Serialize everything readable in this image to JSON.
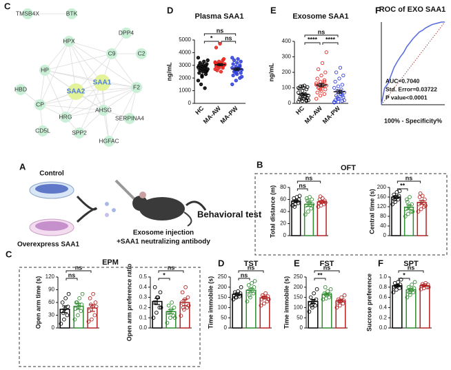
{
  "network": {
    "panel_label": "C",
    "nodes": [
      {
        "label": "TMSB4X"
      },
      {
        "label": "BTK"
      },
      {
        "label": "DPP4"
      },
      {
        "label": "HPX"
      },
      {
        "label": "C9"
      },
      {
        "label": "C2"
      },
      {
        "label": "HP"
      },
      {
        "label": "SAA1",
        "highlight": true
      },
      {
        "label": "SAA2",
        "highlight": true
      },
      {
        "label": "F2"
      },
      {
        "label": "HBD"
      },
      {
        "label": "CP"
      },
      {
        "label": "HRG"
      },
      {
        "label": "AHSG"
      },
      {
        "label": "SERPINA4"
      },
      {
        "label": "CD5L"
      },
      {
        "label": "SPP2"
      },
      {
        "label": "HGFAC"
      }
    ]
  },
  "schematic": {
    "panel_label": "A",
    "control": "Control",
    "overexpress": "Overexpress SAA1",
    "injection": "Exosome injection",
    "antibody": "+SAA1 neutralizing antibody",
    "outcome": "Behavioral test"
  },
  "boxes": [
    {
      "panel_label": "B",
      "title": "OFT"
    },
    {
      "panel_label": "C",
      "title": "EPM"
    }
  ],
  "chart_data": [
    {
      "type": "dot",
      "panel_label": "D",
      "title": "Plasma SAA1",
      "ylabel": "ng/mL",
      "categories": [
        "HC",
        "MA-AW",
        "MA-PW"
      ],
      "colors": [
        "#000000",
        "#e8251f",
        "#2f3fd8"
      ],
      "marker": "filled",
      "bar": false,
      "means": [
        2650,
        3050,
        2700
      ],
      "errors": [
        110,
        80,
        100
      ],
      "points": [
        [
          1800,
          2100,
          2300,
          2400,
          2500,
          2550,
          2600,
          2650,
          2700,
          2750,
          2800,
          2850,
          2900,
          2950,
          3000,
          3050,
          3100,
          3200,
          3300,
          3400,
          1500,
          1200,
          3600,
          2200,
          2500
        ],
        [
          2700,
          2800,
          2900,
          2950,
          3000,
          3000,
          3050,
          3100,
          3100,
          3150,
          3200,
          3250,
          3300,
          3400,
          4400,
          4700,
          3500,
          2600,
          2500,
          3050,
          2900,
          3000,
          3200,
          3100,
          2800
        ],
        [
          1500,
          1800,
          2000,
          2200,
          2300,
          2400,
          2500,
          2600,
          2650,
          2700,
          2750,
          2800,
          2900,
          3000,
          3100,
          3200,
          3300,
          3400,
          3500,
          2100,
          2600,
          2800,
          3600,
          2400,
          2900
        ]
      ],
      "ylim": [
        0,
        5000
      ],
      "yticks": [
        0,
        1000,
        2000,
        3000,
        4000,
        5000
      ],
      "comparisons": [
        {
          "label": "*",
          "between": [
            0,
            1
          ]
        },
        {
          "label": "ns",
          "between": [
            1,
            2
          ]
        },
        {
          "label": "ns",
          "between": [
            0,
            2
          ]
        }
      ]
    },
    {
      "type": "dot",
      "panel_label": "E",
      "title": "Exosome SAA1",
      "ylabel": "ng/mL",
      "categories": [
        "HC",
        "MA-AW",
        "MA-PW"
      ],
      "colors": [
        "#000000",
        "#e8251f",
        "#2f3fd8"
      ],
      "marker": "open",
      "bar": false,
      "means": [
        58,
        118,
        75
      ],
      "errors": [
        8,
        10,
        10
      ],
      "points": [
        [
          10,
          15,
          20,
          25,
          30,
          35,
          40,
          45,
          50,
          55,
          60,
          70,
          80,
          90,
          95,
          100,
          105,
          110,
          115,
          20,
          30,
          40,
          100,
          110,
          15
        ],
        [
          30,
          50,
          60,
          70,
          80,
          90,
          100,
          110,
          115,
          120,
          125,
          130,
          140,
          150,
          160,
          180,
          200,
          220,
          260,
          330,
          100,
          110,
          120,
          90,
          140
        ],
        [
          5,
          10,
          15,
          20,
          30,
          40,
          50,
          60,
          70,
          80,
          90,
          100,
          110,
          120,
          140,
          160,
          180,
          200,
          230,
          20,
          40,
          60,
          10,
          30,
          50
        ]
      ],
      "ylim": [
        0,
        400
      ],
      "yticks": [
        0,
        100,
        200,
        300,
        400
      ],
      "comparisons": [
        {
          "label": "****",
          "between": [
            0,
            1
          ]
        },
        {
          "label": "****",
          "between": [
            1,
            2
          ]
        },
        {
          "label": "ns",
          "between": [
            0,
            2
          ]
        }
      ]
    },
    {
      "type": "line",
      "panel_label": "F",
      "title": "ROC of EXO SAA1",
      "xlabel": "100% - Specificity%",
      "color": "#5a6ee0",
      "reference_line": true,
      "x": [
        0,
        5,
        10,
        15,
        20,
        25,
        30,
        35,
        40,
        45,
        50,
        55,
        60,
        65,
        70,
        75,
        80,
        85,
        90,
        95,
        100
      ],
      "values": [
        0,
        20,
        25,
        35,
        45,
        52,
        58,
        63,
        70,
        75,
        80,
        84,
        88,
        90,
        93,
        95,
        97,
        98,
        99,
        100,
        100
      ],
      "xlim": [
        0,
        100
      ],
      "ylim": [
        0,
        100
      ],
      "annotations": [
        "AUC=0.7040",
        "Std. Error=0.03722",
        "P value<0.0001"
      ]
    },
    {
      "type": "dot",
      "ylabel": "Total distance (m)",
      "colors": [
        "#000000",
        "#2e8b2e",
        "#b22222"
      ],
      "marker": "open",
      "bar": true,
      "means": [
        57,
        52,
        56
      ],
      "errors": [
        2,
        3.5,
        2
      ],
      "points": [
        [
          50,
          52,
          54,
          56,
          58,
          60,
          62,
          64,
          66,
          48
        ],
        [
          35,
          40,
          45,
          50,
          55,
          60,
          62,
          64,
          52,
          58
        ],
        [
          48,
          50,
          52,
          54,
          56,
          58,
          60,
          62,
          55,
          65
        ]
      ],
      "ylim": [
        0,
        80
      ],
      "yticks": [
        0,
        20,
        40,
        60,
        80
      ],
      "comparisons": [
        {
          "label": "ns",
          "between": [
            0,
            1
          ]
        },
        {
          "label": "ns",
          "between": [
            0,
            2
          ]
        }
      ]
    },
    {
      "type": "dot",
      "ylabel": "Central time (s)",
      "colors": [
        "#000000",
        "#2e8b2e",
        "#b22222"
      ],
      "marker": "open",
      "bar": true,
      "means": [
        160,
        118,
        138
      ],
      "errors": [
        6,
        10,
        8
      ],
      "points": [
        [
          130,
          140,
          150,
          155,
          160,
          165,
          170,
          180,
          185,
          150
        ],
        [
          80,
          90,
          100,
          110,
          120,
          130,
          150,
          160,
          100,
          140
        ],
        [
          100,
          110,
          120,
          130,
          140,
          150,
          160,
          165,
          125,
          175
        ]
      ],
      "ylim": [
        0,
        200
      ],
      "yticks": [
        0,
        40,
        80,
        120,
        160,
        200
      ],
      "comparisons": [
        {
          "label": "**",
          "between": [
            0,
            1
          ]
        },
        {
          "label": "ns",
          "between": [
            0,
            2
          ]
        }
      ]
    },
    {
      "type": "dot",
      "ylabel": "Open arm time (s)",
      "colors": [
        "#000000",
        "#2e8b2e",
        "#b22222"
      ],
      "marker": "open",
      "bar": true,
      "means": [
        44,
        51,
        47
      ],
      "errors": [
        8,
        7,
        8
      ],
      "points": [
        [
          10,
          20,
          30,
          40,
          45,
          50,
          60,
          70,
          80,
          35
        ],
        [
          20,
          30,
          40,
          45,
          50,
          55,
          60,
          70,
          80,
          60
        ],
        [
          15,
          20,
          30,
          40,
          50,
          60,
          70,
          80,
          50,
          55
        ]
      ],
      "ylim": [
        0,
        120
      ],
      "yticks": [
        0,
        30,
        60,
        90,
        120
      ],
      "comparisons": [
        {
          "label": "ns",
          "between": [
            0,
            1
          ]
        },
        {
          "label": "ns",
          "between": [
            0,
            2
          ]
        }
      ]
    },
    {
      "type": "dot",
      "ylabel": "Open arm preference ratio",
      "colors": [
        "#000000",
        "#2e8b2e",
        "#b22222"
      ],
      "marker": "open",
      "bar": true,
      "means": [
        0.26,
        0.16,
        0.25
      ],
      "errors": [
        0.03,
        0.02,
        0.03
      ],
      "points": [
        [
          0.1,
          0.15,
          0.2,
          0.25,
          0.3,
          0.35,
          0.4,
          0.3,
          0.2,
          0.25
        ],
        [
          0.05,
          0.1,
          0.12,
          0.15,
          0.18,
          0.2,
          0.22,
          0.25,
          0.1,
          0.15
        ],
        [
          0.12,
          0.18,
          0.2,
          0.25,
          0.28,
          0.3,
          0.35,
          0.4,
          0.22,
          0.2
        ]
      ],
      "ylim": [
        0,
        0.5
      ],
      "yticks": [
        {
          "value": 0,
          "label": "0.0"
        },
        0.1,
        0.2,
        0.3,
        0.4,
        0.5
      ],
      "comparisons": [
        {
          "label": "*",
          "between": [
            0,
            1
          ]
        },
        {
          "label": "ns",
          "between": [
            0,
            2
          ]
        }
      ]
    },
    {
      "type": "dot",
      "panel_label": "D",
      "title": "TST",
      "ylabel": "Time immobile (s)",
      "colors": [
        "#000000",
        "#2e8b2e",
        "#b22222"
      ],
      "marker": "open",
      "bar": true,
      "means": [
        165,
        185,
        148
      ],
      "errors": [
        7,
        10,
        6
      ],
      "points": [
        [
          140,
          150,
          155,
          160,
          165,
          170,
          175,
          180,
          200,
          150
        ],
        [
          130,
          150,
          170,
          180,
          190,
          200,
          210,
          220,
          230,
          160
        ],
        [
          110,
          120,
          130,
          140,
          150,
          155,
          160,
          170,
          140,
          150
        ]
      ],
      "ylim": [
        0,
        250
      ],
      "yticks": [
        0,
        50,
        100,
        150,
        200,
        250
      ],
      "comparisons": [
        {
          "label": "ns",
          "between": [
            0,
            1
          ]
        },
        {
          "label": "ns",
          "between": [
            0,
            2
          ]
        }
      ]
    },
    {
      "type": "dot",
      "panel_label": "E",
      "title": "FST",
      "ylabel": "Time immobile (s)",
      "colors": [
        "#000000",
        "#2e8b2e",
        "#b22222"
      ],
      "marker": "open",
      "bar": true,
      "means": [
        130,
        165,
        133
      ],
      "errors": [
        10,
        6,
        6
      ],
      "points": [
        [
          80,
          100,
          110,
          120,
          130,
          140,
          150,
          170,
          190,
          110
        ],
        [
          140,
          145,
          150,
          155,
          160,
          165,
          170,
          180,
          190,
          200
        ],
        [
          100,
          110,
          120,
          125,
          130,
          135,
          140,
          150,
          160,
          130
        ]
      ],
      "ylim": [
        0,
        250
      ],
      "yticks": [
        0,
        50,
        100,
        150,
        200,
        250
      ],
      "comparisons": [
        {
          "label": "**",
          "between": [
            0,
            1
          ]
        },
        {
          "label": "ns",
          "between": [
            0,
            2
          ]
        }
      ]
    },
    {
      "type": "dot",
      "panel_label": "F",
      "title": "SPT",
      "ylabel": "Sucrose preference",
      "colors": [
        "#000000",
        "#2e8b2e",
        "#b22222"
      ],
      "marker": "open",
      "bar": true,
      "means": [
        0.83,
        0.75,
        0.83
      ],
      "errors": [
        0.02,
        0.03,
        0.01
      ],
      "points": [
        [
          0.7,
          0.75,
          0.78,
          0.8,
          0.83,
          0.85,
          0.88,
          0.9,
          0.95,
          0.82
        ],
        [
          0.6,
          0.65,
          0.7,
          0.72,
          0.75,
          0.78,
          0.8,
          0.85,
          0.9,
          0.7
        ],
        [
          0.76,
          0.78,
          0.8,
          0.82,
          0.84,
          0.85,
          0.86,
          0.88,
          0.8,
          0.83
        ]
      ],
      "ylim": [
        0,
        1
      ],
      "yticks": [
        {
          "value": 0,
          "label": "0.0"
        },
        0.2,
        0.4,
        0.6,
        0.8,
        {
          "value": 1,
          "label": "1.0"
        }
      ],
      "comparisons": [
        {
          "label": "*",
          "between": [
            0,
            1
          ]
        },
        {
          "label": "ns",
          "between": [
            0,
            2
          ]
        }
      ]
    }
  ]
}
